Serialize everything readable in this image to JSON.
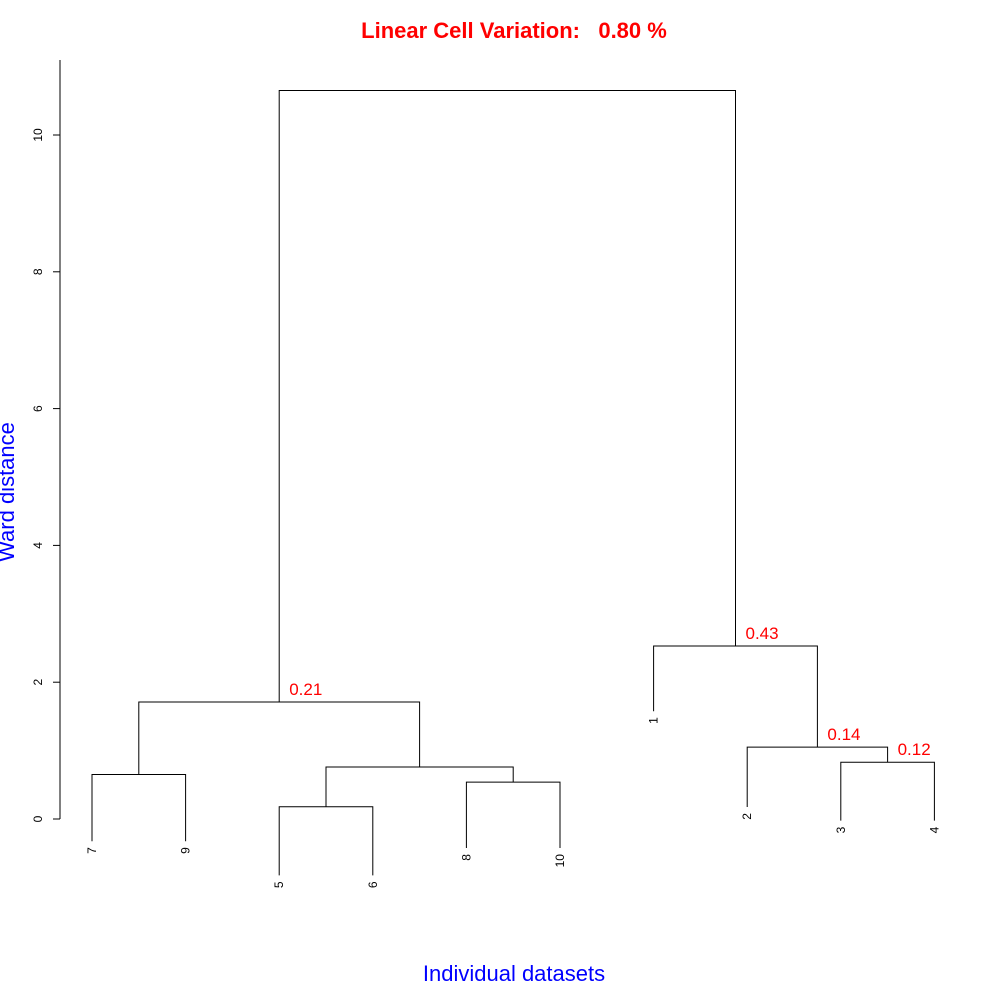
{
  "colors": {
    "title": "#ff0000",
    "axis_title": "#0000ff",
    "annotation": "#ff0000",
    "line": "#000000"
  },
  "chart_data": {
    "type": "dendrogram",
    "title": "Linear Cell Variation:   0.80 %",
    "xlabel": "Individual datasets",
    "ylabel": "Ward distance",
    "ylim": [
      0,
      11
    ],
    "yticks": [
      0,
      2,
      4,
      6,
      8,
      10
    ],
    "leaves": [
      "7",
      "9",
      "5",
      "6",
      "8",
      "10",
      "1",
      "2",
      "3",
      "4"
    ],
    "leaf_label_top": [
      -0.5,
      -0.5,
      -1.0,
      -1.0,
      -0.6,
      -0.6,
      1.4,
      0.0,
      -0.2,
      -0.2
    ],
    "merges": [
      {
        "id": "a",
        "left": "7",
        "right": "9",
        "height": 0.65
      },
      {
        "id": "b",
        "left": "5",
        "right": "6",
        "height": 0.18
      },
      {
        "id": "c",
        "left": "8",
        "right": "10",
        "height": 0.54
      },
      {
        "id": "d",
        "left": "b",
        "right": "c",
        "height": 0.76
      },
      {
        "id": "e",
        "left": "a",
        "right": "d",
        "height": 1.71,
        "label": "0.21"
      },
      {
        "id": "f",
        "left": "3",
        "right": "4",
        "height": 0.83,
        "label": "0.12"
      },
      {
        "id": "g",
        "left": "2",
        "right": "f",
        "height": 1.05,
        "label": "0.14"
      },
      {
        "id": "h",
        "left": "1",
        "right": "g",
        "height": 2.53,
        "label": "0.43"
      },
      {
        "id": "root",
        "left": "e",
        "right": "h",
        "height": 10.65
      }
    ]
  }
}
